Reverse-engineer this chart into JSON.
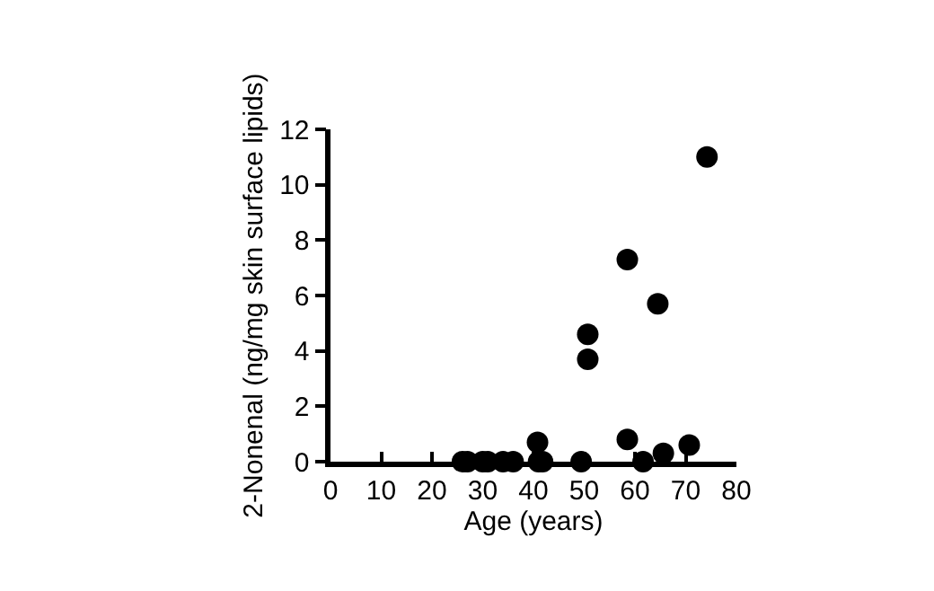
{
  "chart_data": {
    "type": "scatter",
    "xlabel": "Age (years)",
    "ylabel": "2-Nonenal (ng/mg skin surface lipids)",
    "x": [
      26,
      27,
      30,
      31,
      34,
      36,
      40.8,
      41,
      41.8,
      49.4,
      50.7,
      50.7,
      58.5,
      58.5,
      61.6,
      64.5,
      65.6,
      70.7,
      74.2
    ],
    "series": [
      {
        "color": "#000000",
        "values": [
          0,
          0,
          0,
          0,
          0,
          0,
          0.7,
          0,
          0,
          0,
          4.6,
          3.7,
          7.3,
          0.8,
          0,
          5.7,
          0.3,
          0.6,
          11
        ]
      }
    ],
    "xlim": [
      0,
      80
    ],
    "xticks": [
      0,
      10,
      20,
      30,
      40,
      50,
      60,
      70,
      80
    ],
    "ylim": [
      0,
      12
    ],
    "yticks": [
      0,
      2,
      4,
      6,
      8,
      10,
      12
    ],
    "grid": false,
    "legend": false,
    "marker": "circle"
  }
}
